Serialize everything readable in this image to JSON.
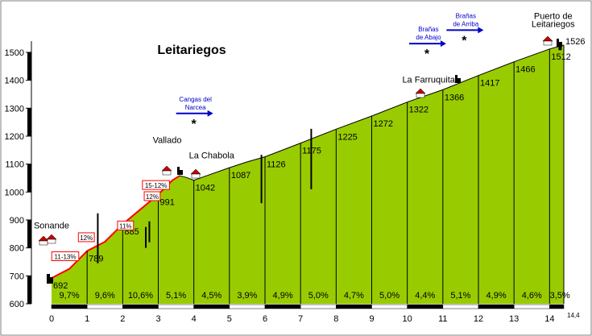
{
  "colors": {
    "fill": "#99cc00",
    "steep": "#ff0000",
    "grid": "#000000",
    "arrow": "#0000cc",
    "background": "#ffffff"
  },
  "chart_data": {
    "type": "area",
    "title": "Leitariegos",
    "xlim": [
      0,
      14.4
    ],
    "ylim": [
      600,
      1550
    ],
    "x_ticks": [
      0,
      1,
      2,
      3,
      4,
      5,
      6,
      7,
      8,
      9,
      10,
      11,
      12,
      13,
      14
    ],
    "y_ticks": [
      600,
      700,
      800,
      900,
      1000,
      1100,
      1200,
      1300,
      1400,
      1500
    ],
    "end_label": "14,4",
    "grid": true,
    "profile": [
      {
        "x": 0.0,
        "y": 692
      },
      {
        "x": 0.5,
        "y": 725
      },
      {
        "x": 1.0,
        "y": 789
      },
      {
        "x": 1.5,
        "y": 822
      },
      {
        "x": 2.0,
        "y": 885
      },
      {
        "x": 2.5,
        "y": 938
      },
      {
        "x": 3.0,
        "y": 991
      },
      {
        "x": 3.4,
        "y": 1042
      },
      {
        "x": 3.6,
        "y": 1058
      },
      {
        "x": 3.8,
        "y": 1052
      },
      {
        "x": 4.0,
        "y": 1042
      },
      {
        "x": 5.0,
        "y": 1087
      },
      {
        "x": 5.5,
        "y": 1108
      },
      {
        "x": 6.0,
        "y": 1126
      },
      {
        "x": 7.0,
        "y": 1175
      },
      {
        "x": 8.0,
        "y": 1225
      },
      {
        "x": 9.0,
        "y": 1272
      },
      {
        "x": 10.0,
        "y": 1322
      },
      {
        "x": 11.0,
        "y": 1366
      },
      {
        "x": 12.0,
        "y": 1417
      },
      {
        "x": 13.0,
        "y": 1466
      },
      {
        "x": 14.0,
        "y": 1512
      },
      {
        "x": 14.4,
        "y": 1526
      }
    ],
    "elevation_labels": [
      {
        "x": 0,
        "y": 692,
        "text": "692"
      },
      {
        "x": 1,
        "y": 789,
        "text": "789"
      },
      {
        "x": 2,
        "y": 885,
        "text": "885"
      },
      {
        "x": 3,
        "y": 991,
        "text": "991"
      },
      {
        "x": 4,
        "y": 1042,
        "text": "1042"
      },
      {
        "x": 5,
        "y": 1087,
        "text": "1087"
      },
      {
        "x": 6,
        "y": 1126,
        "text": "1126"
      },
      {
        "x": 7,
        "y": 1175,
        "text": "1175"
      },
      {
        "x": 8,
        "y": 1225,
        "text": "1225"
      },
      {
        "x": 9,
        "y": 1272,
        "text": "1272"
      },
      {
        "x": 10,
        "y": 1322,
        "text": "1322"
      },
      {
        "x": 11,
        "y": 1366,
        "text": "1366"
      },
      {
        "x": 12,
        "y": 1417,
        "text": "1417"
      },
      {
        "x": 13,
        "y": 1466,
        "text": "1466"
      },
      {
        "x": 14,
        "y": 1512,
        "text": "1512"
      },
      {
        "x": 14.4,
        "y": 1526,
        "text": "1526"
      }
    ],
    "segment_gradients": [
      "9,7%",
      "9,6%",
      "10,6%",
      "5,1%",
      "4,5%",
      "3,9%",
      "4,9%",
      "5,0%",
      "4,7%",
      "5,0%",
      "4,4%",
      "5,1%",
      "4,9%",
      "4,6%",
      "3,5%"
    ],
    "steep_gradients": [
      {
        "x": 0.05,
        "y": 760,
        "text": "11-13%"
      },
      {
        "x": 0.8,
        "y": 828,
        "text": "12%"
      },
      {
        "x": 1.9,
        "y": 870,
        "text": "11%"
      },
      {
        "x": 2.65,
        "y": 975,
        "text": "12%"
      },
      {
        "x": 2.6,
        "y": 1015,
        "text": "15-12%"
      }
    ],
    "places": [
      {
        "x": 0,
        "y": 870,
        "text": "Sonande"
      },
      {
        "x": 3.25,
        "y": 1175,
        "text": "Vallado"
      },
      {
        "x": 4.5,
        "y": 1120,
        "text": "La Chabola"
      },
      {
        "x": 10.6,
        "y": 1392,
        "text": "La Farruquita"
      },
      {
        "x": 14.1,
        "y": 1620,
        "text": "Puerto de"
      },
      {
        "x": 14.1,
        "y": 1590,
        "text": "Leitariegos"
      }
    ],
    "directions": [
      {
        "x": 4.0,
        "y": 1290,
        "lines": [
          "Cangas del",
          "Narcea"
        ]
      },
      {
        "x": 10.55,
        "y": 1540,
        "lines": [
          "Brañas",
          "de Abajo"
        ]
      },
      {
        "x": 11.6,
        "y": 1588,
        "lines": [
          "Brañas",
          "de Arriba"
        ]
      }
    ]
  }
}
